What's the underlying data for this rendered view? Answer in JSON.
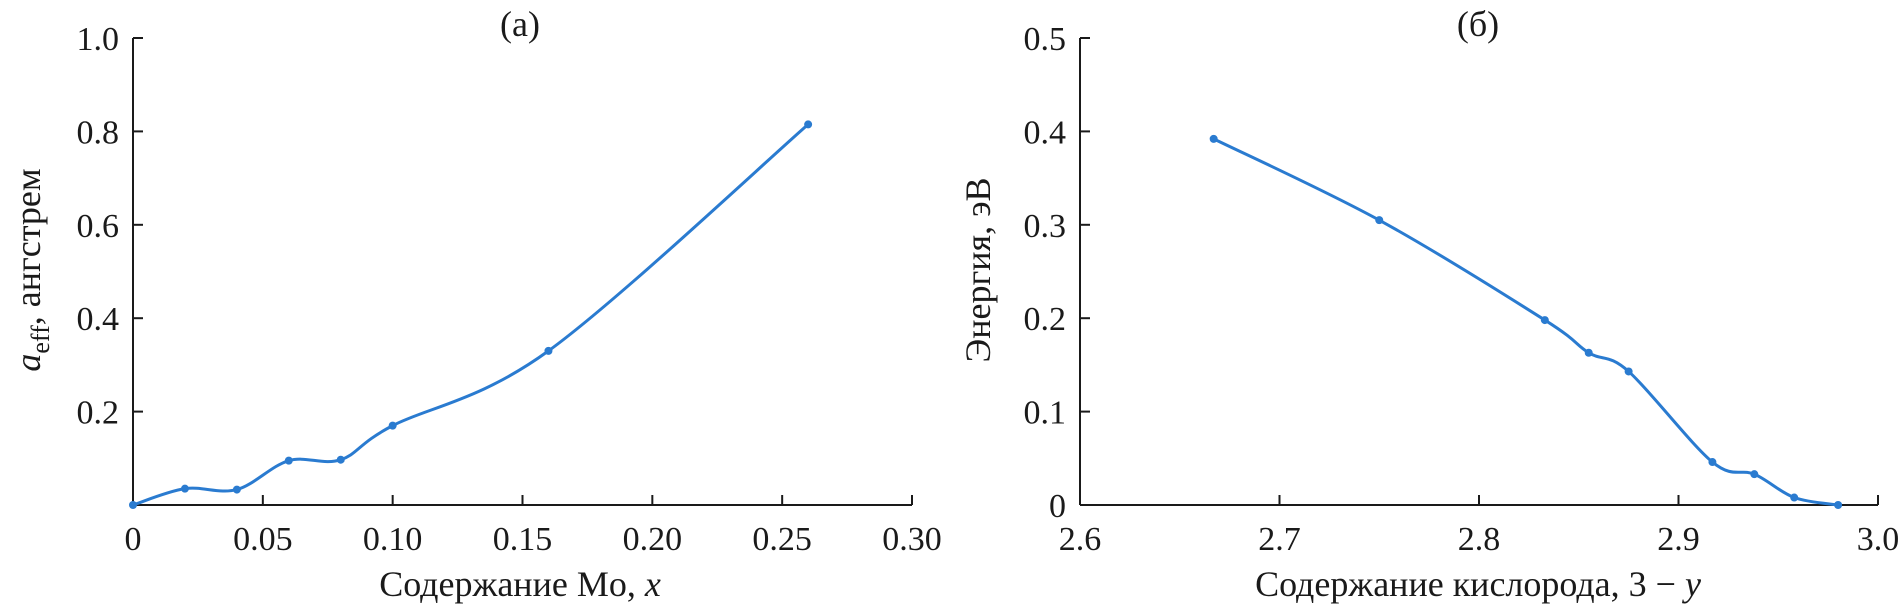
{
  "chart_data": [
    {
      "type": "line",
      "panel_label": "(а)",
      "xlabel_prefix": "Содержание Mo, ",
      "xlabel_var": "x",
      "ylabel_var": "a",
      "ylabel_sub": "eff",
      "ylabel_suffix": ", ангстрем",
      "xlim": [
        0,
        0.3
      ],
      "ylim": [
        0,
        1.0
      ],
      "x_ticks": [
        {
          "value": 0,
          "label": "0"
        },
        {
          "value": 0.05,
          "label": "0.05"
        },
        {
          "value": 0.1,
          "label": "0.10"
        },
        {
          "value": 0.15,
          "label": "0.15"
        },
        {
          "value": 0.2,
          "label": "0.20"
        },
        {
          "value": 0.25,
          "label": "0.25"
        },
        {
          "value": 0.3,
          "label": "0.30"
        }
      ],
      "y_ticks": [
        {
          "value": 0.2,
          "label": "0.2"
        },
        {
          "value": 0.4,
          "label": "0.4"
        },
        {
          "value": 0.6,
          "label": "0.6"
        },
        {
          "value": 0.8,
          "label": "0.8"
        },
        {
          "value": 1.0,
          "label": "1.0"
        }
      ],
      "grid": false,
      "series": [
        {
          "color": "#2a7bd0",
          "x": [
            0,
            0.02,
            0.04,
            0.06,
            0.08,
            0.1,
            0.16,
            0.26
          ],
          "y": [
            0,
            0.035,
            0.033,
            0.095,
            0.097,
            0.17,
            0.33,
            0.815
          ]
        }
      ]
    },
    {
      "type": "line",
      "panel_label": "(б)",
      "xlabel_prefix": "Содержание кислорода, 3 − ",
      "xlabel_var": "y",
      "ylabel": "Энергия, эВ",
      "xlim": [
        2.6,
        3.0
      ],
      "ylim": [
        0,
        0.5
      ],
      "x_ticks": [
        {
          "value": 2.6,
          "label": "2.6"
        },
        {
          "value": 2.7,
          "label": "2.7"
        },
        {
          "value": 2.8,
          "label": "2.8"
        },
        {
          "value": 2.9,
          "label": "2.9"
        },
        {
          "value": 3.0,
          "label": "3.0"
        }
      ],
      "y_ticks": [
        {
          "value": 0,
          "label": "0"
        },
        {
          "value": 0.1,
          "label": "0.1"
        },
        {
          "value": 0.2,
          "label": "0.2"
        },
        {
          "value": 0.3,
          "label": "0.3"
        },
        {
          "value": 0.4,
          "label": "0.4"
        },
        {
          "value": 0.5,
          "label": "0.5"
        }
      ],
      "grid": false,
      "series": [
        {
          "color": "#2a7bd0",
          "x": [
            2.667,
            2.75,
            2.833,
            2.855,
            2.875,
            2.917,
            2.938,
            2.958,
            2.98
          ],
          "y": [
            0.392,
            0.305,
            0.198,
            0.163,
            0.143,
            0.046,
            0.033,
            0.008,
            0.0
          ]
        }
      ]
    }
  ]
}
